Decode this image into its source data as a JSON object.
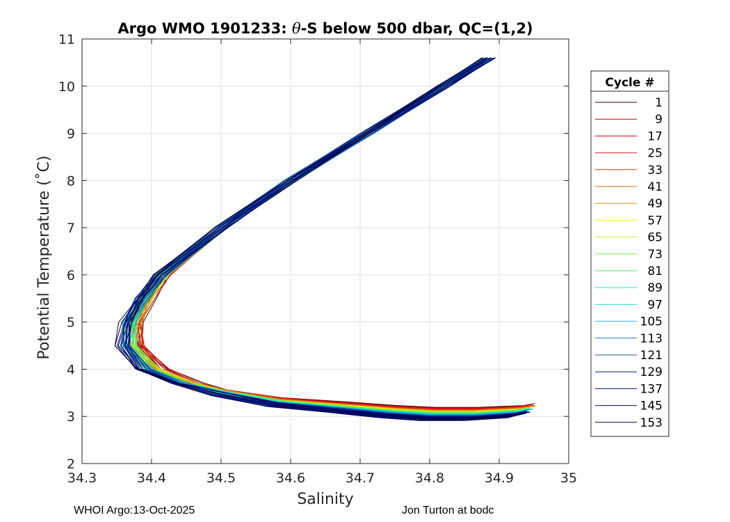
{
  "chart_data": {
    "type": "line",
    "title_prefix": "Argo WMO 1901233: ",
    "title_theta": "θ",
    "title_suffix": "-S below 500 dbar,  QC=(1,2)",
    "xlabel": "Salinity",
    "ylabel": "Potential Temperature (˚C)",
    "xlim": [
      34.3,
      35
    ],
    "ylim": [
      2,
      11
    ],
    "xticks": [
      "34.3",
      "34.4",
      "34.5",
      "34.6",
      "34.7",
      "34.8",
      "34.9",
      "35"
    ],
    "yticks": [
      "2",
      "3",
      "4",
      "5",
      "6",
      "7",
      "8",
      "9",
      "10",
      "11"
    ],
    "grid": true,
    "legend": {
      "title": "Cycle #",
      "placement": "right-outside",
      "entries": [
        "1",
        "9",
        "17",
        "25",
        "33",
        "41",
        "49",
        "57",
        "65",
        "73",
        "81",
        "89",
        "97",
        "105",
        "113",
        "121",
        "129",
        "137",
        "145",
        "153"
      ],
      "colors": [
        "#3a0000",
        "#b30000",
        "#e00000",
        "#e02020",
        "#e04020",
        "#c07000",
        "#d0a000",
        "#f0f000",
        "#c0f020",
        "#80f040",
        "#40f060",
        "#20f0a0",
        "#20e0d0",
        "#20b0e0",
        "#1080c0",
        "#1050b0",
        "#0020a0",
        "#001080",
        "#000060",
        "#000040"
      ]
    },
    "representative_curve": {
      "theta": [
        10.6,
        10.0,
        9.0,
        8.0,
        7.0,
        6.0,
        5.5,
        5.0,
        4.5,
        4.0,
        3.7,
        3.5,
        3.3,
        3.2,
        3.1,
        3.05,
        3.05,
        3.1,
        3.15
      ],
      "salinity": [
        34.885,
        34.82,
        34.71,
        34.6,
        34.5,
        34.415,
        34.39,
        34.372,
        34.37,
        34.4,
        34.45,
        34.5,
        34.58,
        34.66,
        34.74,
        34.8,
        34.86,
        34.92,
        34.94
      ]
    }
  },
  "footer": {
    "left": "WHOI Argo:13-Oct-2025",
    "right": "Jon Turton at bodc"
  }
}
